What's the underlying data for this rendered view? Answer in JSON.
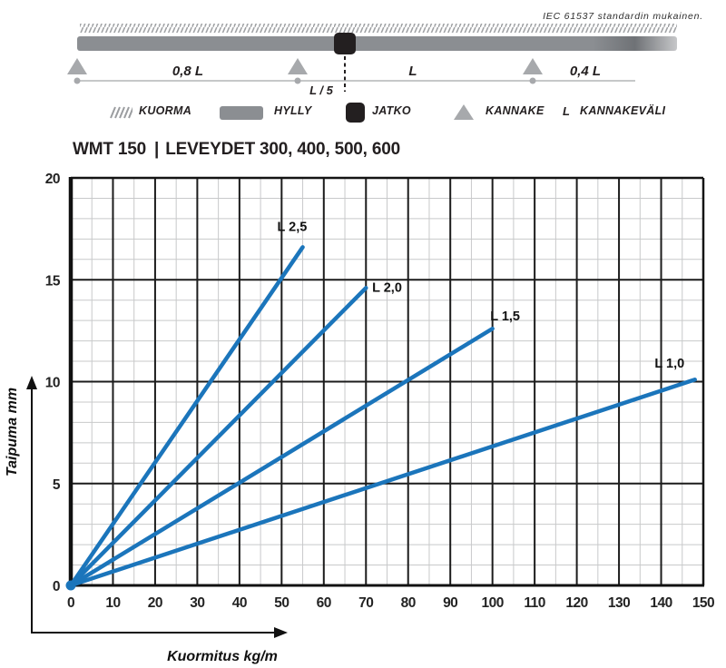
{
  "diagram": {
    "span_left": "0,8 L",
    "span_l5": "L / 5",
    "span_mid": "L",
    "span_right": "0,4 L"
  },
  "legend": {
    "items": [
      {
        "icon": "hatch-icon",
        "label": "KUORMA"
      },
      {
        "icon": "shelf-icon",
        "label": "HYLLY"
      },
      {
        "icon": "joint-icon",
        "label": "JATKO"
      },
      {
        "icon": "support-icon",
        "label": "KANNAKE"
      },
      {
        "icon": "L",
        "label": "KANNAKEVÄLI"
      }
    ],
    "l_symbol": "L"
  },
  "header": {
    "product": "WMT 150",
    "separator": "|",
    "widths": "LEVEYDET 300, 400, 500, 600",
    "standard_note": "IEC 61537 standardin mukainen."
  },
  "chart_data": {
    "type": "line",
    "title": "WMT 150 | LEVEYDET 300, 400, 500, 600",
    "xlabel": "Kuormitus kg/m",
    "ylabel": "Taipuma mm",
    "xlim": [
      0,
      150
    ],
    "ylim": [
      0,
      20
    ],
    "x_major_step": 10,
    "x_minor_step": 5,
    "y_major_step": 5,
    "y_minor_step": 1,
    "x_ticks": [
      0,
      10,
      20,
      30,
      40,
      50,
      60,
      70,
      80,
      90,
      100,
      110,
      120,
      130,
      140,
      150
    ],
    "y_ticks": [
      0,
      5,
      10,
      15,
      20
    ],
    "grid": "on",
    "line_color": "#1b75bb",
    "grid_minor_color": "#c8c9ca",
    "grid_major_color": "#1c1c1c",
    "series": [
      {
        "name": "L 2,5",
        "points": [
          [
            0,
            0
          ],
          [
            55,
            16.6
          ]
        ],
        "label_pos": [
          52.5,
          17.4
        ]
      },
      {
        "name": "L 2,0",
        "points": [
          [
            0,
            0
          ],
          [
            70,
            14.6
          ]
        ],
        "label_pos": [
          75.0,
          14.4
        ]
      },
      {
        "name": "L 1,5",
        "points": [
          [
            0,
            0
          ],
          [
            100,
            12.6
          ]
        ],
        "label_pos": [
          103.0,
          13.0
        ]
      },
      {
        "name": "L 1,0",
        "points": [
          [
            0,
            0
          ],
          [
            148,
            10.1
          ]
        ],
        "label_pos": [
          142.0,
          10.7
        ]
      }
    ]
  }
}
